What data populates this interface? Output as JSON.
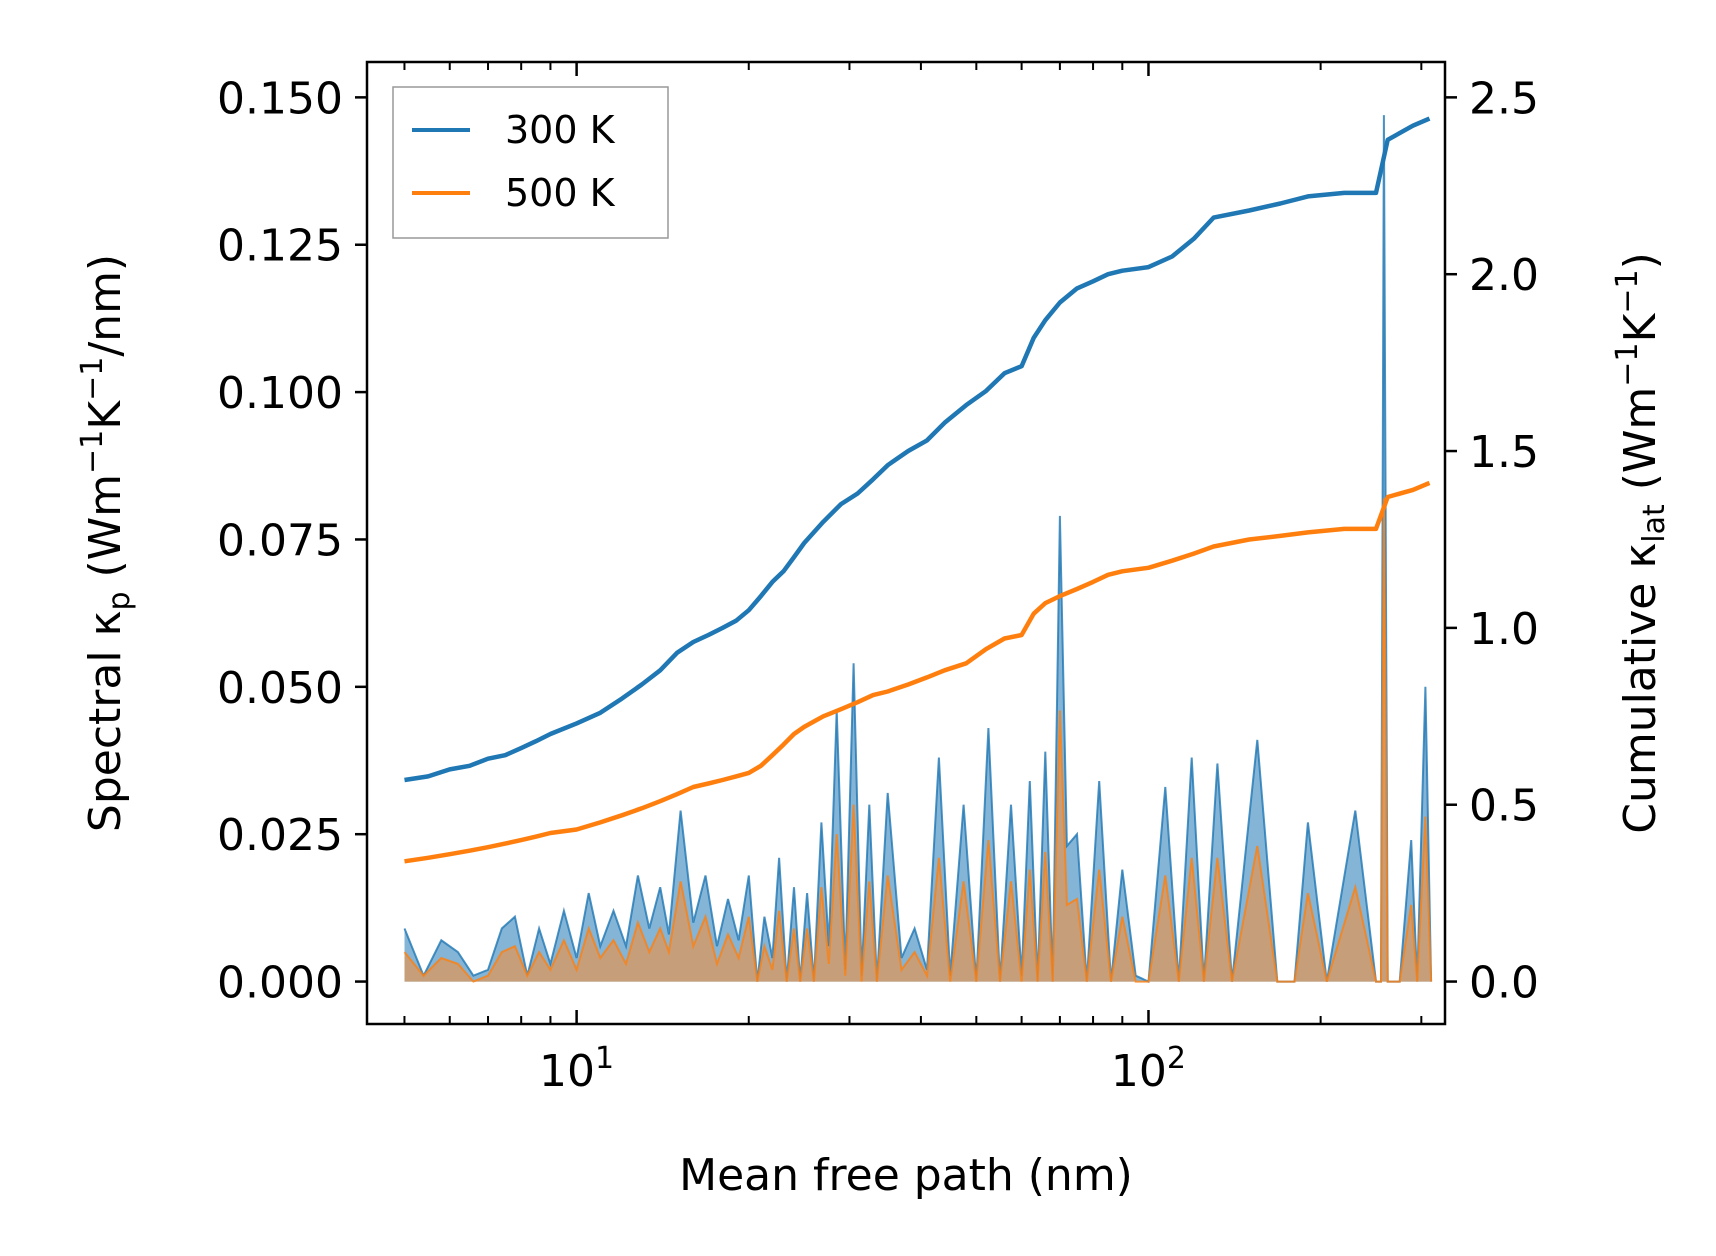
{
  "chart_data": {
    "type": "line+area",
    "xscale": "log",
    "xlim": [
      4.3,
      330
    ],
    "xlabel": "Mean free path (nm)",
    "xticks": [
      {
        "value": 10,
        "base": "10",
        "exp": "1"
      },
      {
        "value": 100,
        "base": "10",
        "exp": "2"
      }
    ],
    "left_axis": {
      "label_main": "Spectral κ",
      "label_sub": "p",
      "label_unit_open": " (Wm",
      "label_exp1": "−1",
      "label_mid": "K",
      "label_exp2": "−1",
      "label_tail": "/nm)",
      "ylim": [
        -0.0072,
        0.156
      ],
      "ticks": [
        "0.000",
        "0.025",
        "0.050",
        "0.075",
        "0.100",
        "0.125",
        "0.150"
      ]
    },
    "right_axis": {
      "label_main": "Cumulative κ",
      "label_sub": "lat",
      "label_unit_open": " (Wm",
      "label_exp1": "−1",
      "label_mid": "K",
      "label_exp2": "−1",
      "label_tail": ")",
      "ylim": [
        -0.12,
        2.6
      ],
      "ticks": [
        "0.0",
        "0.5",
        "1.0",
        "1.5",
        "2.0",
        "2.5"
      ]
    },
    "legend": {
      "location": "top-left",
      "entries": [
        {
          "label": "300 K",
          "color": "#1f77b4"
        },
        {
          "label": "500 K",
          "color": "#ff7f0e"
        }
      ]
    },
    "series": [
      {
        "name": "300 K",
        "color": "#1f77b4",
        "cumulative": {
          "x": [
            5.0,
            5.5,
            6.0,
            6.5,
            7.0,
            7.5,
            8.0,
            8.5,
            9.0,
            10.0,
            11.0,
            12.0,
            13.0,
            14.0,
            15.0,
            16.0,
            17.0,
            18.0,
            19.0,
            20.0,
            21.0,
            22.0,
            23.0,
            24.0,
            25.0,
            27.0,
            29.0,
            31.0,
            33.0,
            35.0,
            38.0,
            41.0,
            44.0,
            48.0,
            52.0,
            56.0,
            60.0,
            63.0,
            66.0,
            70.0,
            75.0,
            80.0,
            85.0,
            90.0,
            100.0,
            110.0,
            120.0,
            130.0,
            150.0,
            170.0,
            190.0,
            220.0,
            250.0,
            262.0,
            290.0,
            310.0
          ],
          "y": [
            0.57,
            0.58,
            0.6,
            0.61,
            0.63,
            0.64,
            0.66,
            0.68,
            0.7,
            0.73,
            0.76,
            0.8,
            0.84,
            0.88,
            0.93,
            0.96,
            0.98,
            1.0,
            1.02,
            1.05,
            1.09,
            1.13,
            1.16,
            1.2,
            1.24,
            1.3,
            1.35,
            1.38,
            1.42,
            1.46,
            1.5,
            1.53,
            1.58,
            1.63,
            1.67,
            1.72,
            1.74,
            1.82,
            1.87,
            1.92,
            1.96,
            1.98,
            2.0,
            2.01,
            2.02,
            2.05,
            2.1,
            2.16,
            2.18,
            2.2,
            2.22,
            2.23,
            2.23,
            2.38,
            2.42,
            2.44
          ]
        },
        "spectral": {
          "x": [
            5.0,
            5.4,
            5.8,
            6.2,
            6.6,
            7.0,
            7.4,
            7.8,
            8.2,
            8.6,
            9.0,
            9.5,
            10.0,
            10.5,
            11.0,
            11.6,
            12.2,
            12.8,
            13.4,
            14.0,
            14.5,
            15.2,
            16.0,
            16.8,
            17.6,
            18.4,
            19.2,
            20.0,
            20.7,
            21.3,
            22.0,
            22.6,
            23.3,
            24.0,
            24.6,
            25.3,
            26.0,
            26.8,
            27.6,
            28.5,
            29.5,
            30.5,
            31.5,
            32.5,
            33.5,
            35.0,
            37.0,
            39.0,
            41.0,
            43.0,
            45.0,
            47.5,
            50.0,
            52.5,
            55.0,
            57.5,
            60.0,
            62.0,
            64.0,
            66.0,
            68.0,
            70.0,
            72.0,
            75.0,
            78.0,
            82.0,
            86.0,
            90.0,
            95.0,
            100.0,
            107.0,
            113.0,
            119.0,
            125.0,
            132.0,
            140.0,
            155.0,
            168.0,
            180.0,
            190.0,
            205.0,
            230.0,
            250.0,
            255.0,
            258.0,
            262.0,
            275.0,
            288.0,
            295.0,
            305.0,
            312.0
          ],
          "y": [
            0.009,
            0.001,
            0.007,
            0.005,
            0.001,
            0.002,
            0.009,
            0.011,
            0.001,
            0.009,
            0.003,
            0.012,
            0.004,
            0.015,
            0.006,
            0.012,
            0.006,
            0.018,
            0.009,
            0.016,
            0.008,
            0.029,
            0.01,
            0.018,
            0.006,
            0.014,
            0.007,
            0.018,
            0.0,
            0.011,
            0.004,
            0.021,
            0.0,
            0.016,
            0.0,
            0.015,
            0.0,
            0.027,
            0.006,
            0.046,
            0.002,
            0.054,
            0.001,
            0.03,
            0.0,
            0.032,
            0.004,
            0.009,
            0.002,
            0.038,
            0.001,
            0.03,
            0.0,
            0.043,
            0.0,
            0.03,
            0.001,
            0.034,
            0.0,
            0.039,
            0.0,
            0.079,
            0.023,
            0.025,
            0.0,
            0.034,
            0.0,
            0.019,
            0.001,
            0.0,
            0.033,
            0.0,
            0.038,
            0.0,
            0.037,
            0.0,
            0.041,
            0.0,
            0.0,
            0.027,
            0.0,
            0.029,
            0.0,
            0.0,
            0.147,
            0.0,
            0.0,
            0.024,
            0.0,
            0.05,
            0.0
          ]
        }
      },
      {
        "name": "500 K",
        "color": "#ff7f0e",
        "cumulative": {
          "x": [
            5.0,
            5.5,
            6.0,
            6.5,
            7.0,
            7.5,
            8.0,
            8.5,
            9.0,
            10.0,
            11.0,
            12.0,
            13.0,
            14.0,
            15.0,
            16.0,
            17.0,
            18.0,
            19.0,
            20.0,
            21.0,
            22.0,
            23.0,
            24.0,
            25.0,
            27.0,
            29.0,
            31.0,
            33.0,
            35.0,
            38.0,
            41.0,
            44.0,
            48.0,
            52.0,
            56.0,
            60.0,
            63.0,
            66.0,
            70.0,
            75.0,
            80.0,
            85.0,
            90.0,
            100.0,
            110.0,
            120.0,
            130.0,
            150.0,
            170.0,
            190.0,
            220.0,
            250.0,
            262.0,
            290.0,
            310.0
          ],
          "y": [
            0.34,
            0.35,
            0.36,
            0.37,
            0.38,
            0.39,
            0.4,
            0.41,
            0.42,
            0.43,
            0.45,
            0.47,
            0.49,
            0.51,
            0.53,
            0.55,
            0.56,
            0.57,
            0.58,
            0.59,
            0.61,
            0.64,
            0.67,
            0.7,
            0.72,
            0.75,
            0.77,
            0.79,
            0.81,
            0.82,
            0.84,
            0.86,
            0.88,
            0.9,
            0.94,
            0.97,
            0.98,
            1.04,
            1.07,
            1.09,
            1.11,
            1.13,
            1.15,
            1.16,
            1.17,
            1.19,
            1.21,
            1.23,
            1.25,
            1.26,
            1.27,
            1.28,
            1.28,
            1.37,
            1.39,
            1.41
          ]
        },
        "spectral": {
          "x": [
            5.0,
            5.4,
            5.8,
            6.2,
            6.6,
            7.0,
            7.4,
            7.8,
            8.2,
            8.6,
            9.0,
            9.5,
            10.0,
            10.5,
            11.0,
            11.6,
            12.2,
            12.8,
            13.4,
            14.0,
            14.5,
            15.2,
            16.0,
            16.8,
            17.6,
            18.4,
            19.2,
            20.0,
            20.7,
            21.3,
            22.0,
            22.6,
            23.3,
            24.0,
            24.6,
            25.3,
            26.0,
            26.8,
            27.6,
            28.5,
            29.5,
            30.5,
            31.5,
            32.5,
            33.5,
            35.0,
            37.0,
            39.0,
            41.0,
            43.0,
            45.0,
            47.5,
            50.0,
            52.5,
            55.0,
            57.5,
            60.0,
            62.0,
            64.0,
            66.0,
            68.0,
            70.0,
            72.0,
            75.0,
            78.0,
            82.0,
            86.0,
            90.0,
            95.0,
            100.0,
            107.0,
            113.0,
            119.0,
            125.0,
            132.0,
            140.0,
            155.0,
            168.0,
            180.0,
            190.0,
            205.0,
            230.0,
            250.0,
            255.0,
            258.0,
            262.0,
            275.0,
            288.0,
            295.0,
            305.0,
            312.0
          ],
          "y": [
            0.005,
            0.001,
            0.004,
            0.003,
            0.0,
            0.001,
            0.005,
            0.006,
            0.001,
            0.005,
            0.002,
            0.007,
            0.002,
            0.009,
            0.004,
            0.007,
            0.003,
            0.01,
            0.005,
            0.009,
            0.005,
            0.017,
            0.006,
            0.011,
            0.003,
            0.008,
            0.004,
            0.011,
            0.0,
            0.006,
            0.002,
            0.012,
            0.0,
            0.009,
            0.0,
            0.009,
            0.0,
            0.016,
            0.003,
            0.025,
            0.001,
            0.03,
            0.0,
            0.017,
            0.0,
            0.018,
            0.002,
            0.005,
            0.001,
            0.021,
            0.0,
            0.017,
            0.0,
            0.024,
            0.0,
            0.017,
            0.0,
            0.019,
            0.0,
            0.022,
            0.0,
            0.046,
            0.013,
            0.014,
            0.0,
            0.019,
            0.0,
            0.011,
            0.0,
            0.0,
            0.018,
            0.0,
            0.021,
            0.0,
            0.021,
            0.0,
            0.023,
            0.0,
            0.0,
            0.015,
            0.0,
            0.016,
            0.0,
            0.0,
            0.082,
            0.0,
            0.0,
            0.013,
            0.0,
            0.028,
            0.0
          ]
        }
      }
    ]
  }
}
